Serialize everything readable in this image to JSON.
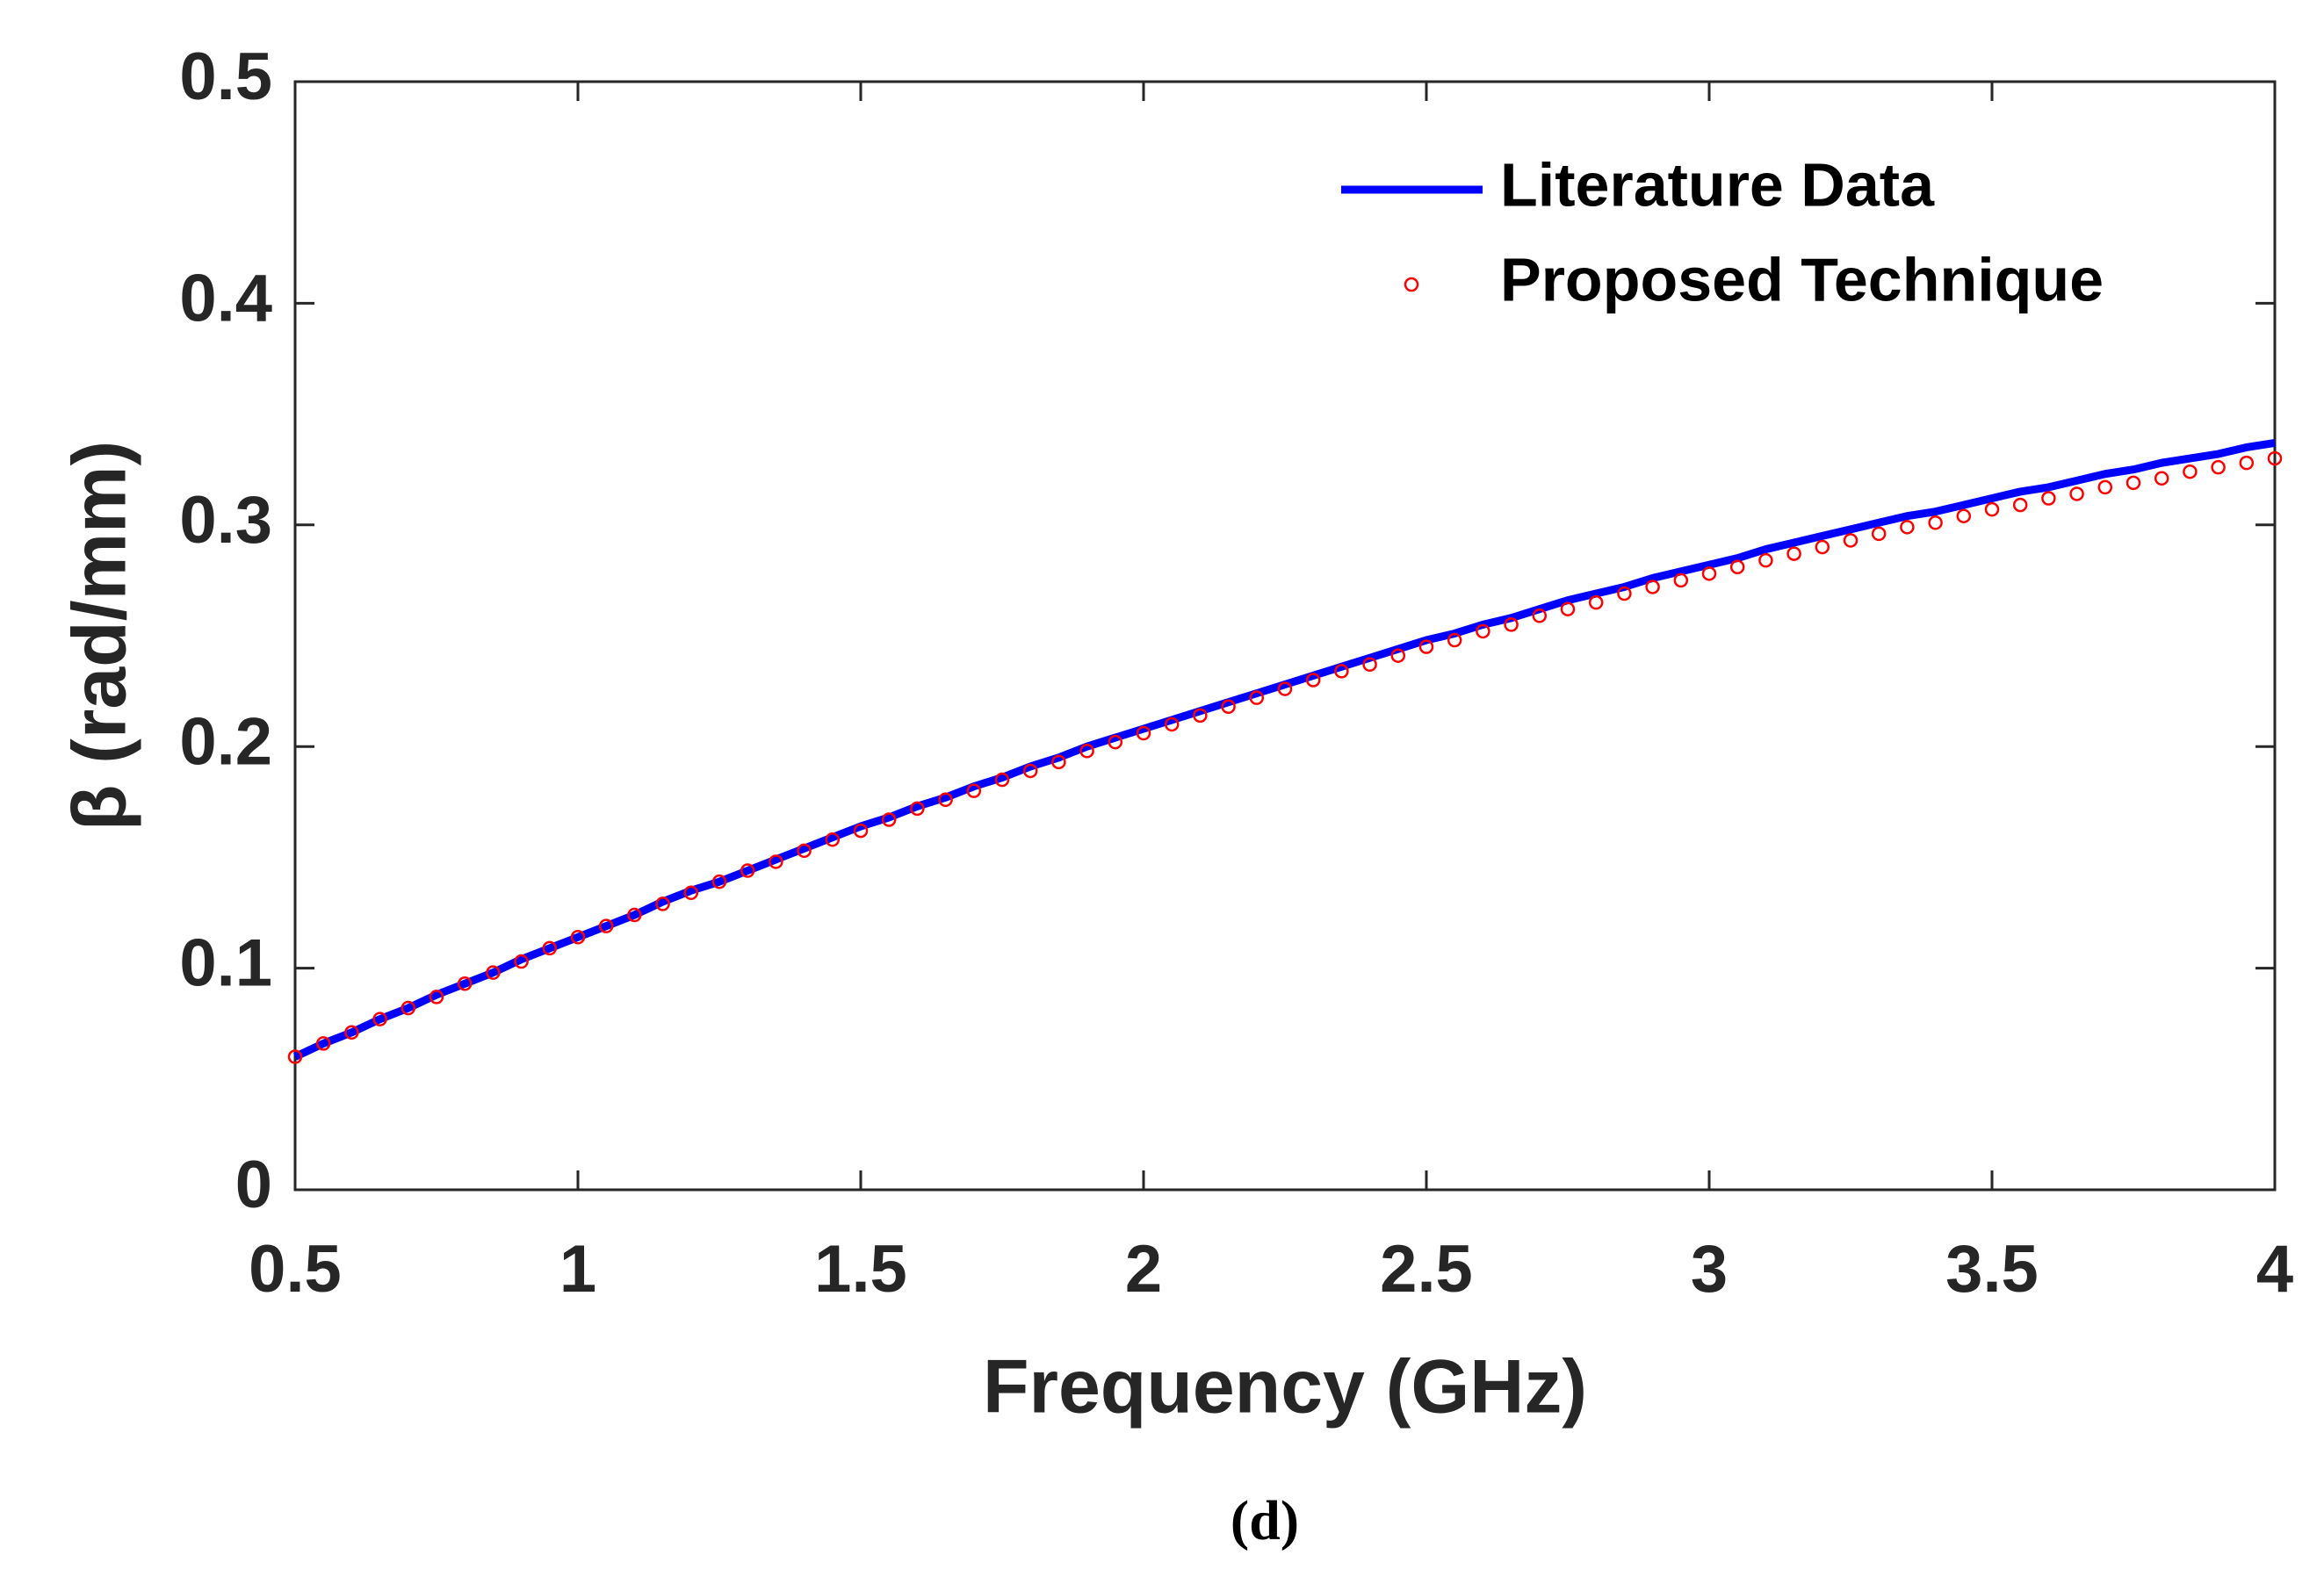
{
  "chart_data": {
    "type": "line",
    "x_label": "Frequency (GHz)",
    "y_label": "β (rad/mm)",
    "caption": "(d)",
    "x": [
      0.5,
      0.55,
      0.6,
      0.65,
      0.7,
      0.75,
      0.8,
      0.85,
      0.9,
      0.95,
      1,
      1.05,
      1.1,
      1.15,
      1.2,
      1.25,
      1.3,
      1.35,
      1.4,
      1.45,
      1.5,
      1.55,
      1.6,
      1.65,
      1.7,
      1.75,
      1.8,
      1.85,
      1.9,
      1.95,
      2,
      2.05,
      2.1,
      2.15,
      2.2,
      2.25,
      2.3,
      2.35,
      2.4,
      2.45,
      2.5,
      2.55,
      2.6,
      2.65,
      2.7,
      2.75,
      2.8,
      2.85,
      2.9,
      2.95,
      3,
      3.05,
      3.1,
      3.15,
      3.2,
      3.25,
      3.3,
      3.35,
      3.4,
      3.45,
      3.5,
      3.55,
      3.6,
      3.65,
      3.7,
      3.75,
      3.8,
      3.85,
      3.9,
      3.95,
      4
    ],
    "series": [
      {
        "name": "Literature Data",
        "color": "#0000ff",
        "style": "line",
        "values": [
          0.06,
          0.066,
          0.071,
          0.077,
          0.082,
          0.088,
          0.093,
          0.098,
          0.104,
          0.109,
          0.114,
          0.119,
          0.124,
          0.13,
          0.135,
          0.139,
          0.144,
          0.149,
          0.154,
          0.159,
          0.164,
          0.168,
          0.173,
          0.177,
          0.182,
          0.186,
          0.191,
          0.195,
          0.2,
          0.204,
          0.208,
          0.212,
          0.216,
          0.22,
          0.224,
          0.228,
          0.232,
          0.236,
          0.24,
          0.244,
          0.248,
          0.251,
          0.255,
          0.258,
          0.262,
          0.266,
          0.269,
          0.272,
          0.276,
          0.279,
          0.282,
          0.285,
          0.289,
          0.292,
          0.295,
          0.298,
          0.301,
          0.304,
          0.306,
          0.309,
          0.312,
          0.315,
          0.317,
          0.32,
          0.323,
          0.325,
          0.328,
          0.33,
          0.332,
          0.335,
          0.337
        ]
      },
      {
        "name": "Proposed Technique",
        "color": "#ff0000",
        "style": "marker",
        "values": [
          0.06,
          0.066,
          0.071,
          0.077,
          0.082,
          0.087,
          0.093,
          0.098,
          0.103,
          0.109,
          0.114,
          0.119,
          0.124,
          0.129,
          0.134,
          0.139,
          0.144,
          0.148,
          0.153,
          0.158,
          0.162,
          0.167,
          0.172,
          0.176,
          0.18,
          0.185,
          0.189,
          0.193,
          0.198,
          0.202,
          0.206,
          0.21,
          0.214,
          0.218,
          0.222,
          0.226,
          0.23,
          0.234,
          0.237,
          0.241,
          0.245,
          0.248,
          0.252,
          0.255,
          0.259,
          0.262,
          0.265,
          0.269,
          0.272,
          0.275,
          0.278,
          0.281,
          0.284,
          0.287,
          0.29,
          0.293,
          0.296,
          0.299,
          0.301,
          0.304,
          0.307,
          0.309,
          0.312,
          0.314,
          0.317,
          0.319,
          0.321,
          0.324,
          0.326,
          0.328,
          0.33
        ]
      }
    ],
    "xlim": [
      0.5,
      4
    ],
    "ylim": [
      0,
      0.5
    ],
    "xticks": [
      0.5,
      1,
      1.5,
      2,
      2.5,
      3,
      3.5,
      4
    ],
    "yticks": [
      0,
      0.1,
      0.2,
      0.3,
      0.4,
      0.5
    ],
    "legend": "upper right",
    "grid": false
  }
}
